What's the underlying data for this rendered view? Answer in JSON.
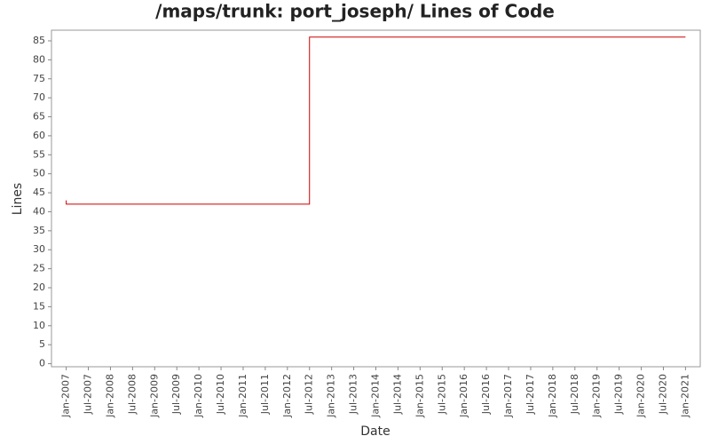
{
  "chart_data": {
    "type": "line",
    "title": "/maps/trunk: port_joseph/ Lines of Code",
    "x_label": "Date",
    "y_label": "Lines",
    "x": [
      "2007-01",
      "2007-01",
      "2012-07",
      "2012-07",
      "2021-01"
    ],
    "series": [
      {
        "name": "Lines",
        "color": "#cc0000",
        "values": [
          43,
          42,
          42,
          86,
          86
        ]
      }
    ],
    "xlim": [
      "2006-09",
      "2021-05"
    ],
    "xticks": [
      {
        "value": "2007-01",
        "label": "Jan-2007"
      },
      {
        "value": "2007-07",
        "label": "Jul-2007"
      },
      {
        "value": "2008-01",
        "label": "Jan-2008"
      },
      {
        "value": "2008-07",
        "label": "Jul-2008"
      },
      {
        "value": "2009-01",
        "label": "Jan-2009"
      },
      {
        "value": "2009-07",
        "label": "Jul-2009"
      },
      {
        "value": "2010-01",
        "label": "Jan-2010"
      },
      {
        "value": "2010-07",
        "label": "Jul-2010"
      },
      {
        "value": "2011-01",
        "label": "Jan-2011"
      },
      {
        "value": "2011-07",
        "label": "Jul-2011"
      },
      {
        "value": "2012-01",
        "label": "Jan-2012"
      },
      {
        "value": "2012-07",
        "label": "Jul-2012"
      },
      {
        "value": "2013-01",
        "label": "Jan-2013"
      },
      {
        "value": "2013-07",
        "label": "Jul-2013"
      },
      {
        "value": "2014-01",
        "label": "Jan-2014"
      },
      {
        "value": "2014-07",
        "label": "Jul-2014"
      },
      {
        "value": "2015-01",
        "label": "Jan-2015"
      },
      {
        "value": "2015-07",
        "label": "Jul-2015"
      },
      {
        "value": "2016-01",
        "label": "Jan-2016"
      },
      {
        "value": "2016-07",
        "label": "Jul-2016"
      },
      {
        "value": "2017-01",
        "label": "Jan-2017"
      },
      {
        "value": "2017-07",
        "label": "Jul-2017"
      },
      {
        "value": "2018-01",
        "label": "Jan-2018"
      },
      {
        "value": "2018-07",
        "label": "Jul-2018"
      },
      {
        "value": "2019-01",
        "label": "Jan-2019"
      },
      {
        "value": "2019-07",
        "label": "Jul-2019"
      },
      {
        "value": "2020-01",
        "label": "Jan-2020"
      },
      {
        "value": "2020-07",
        "label": "Jul-2020"
      },
      {
        "value": "2021-01",
        "label": "Jan-2021"
      }
    ],
    "ylim": [
      -0.8,
      87.8
    ],
    "yticks": [
      0,
      5,
      10,
      15,
      20,
      25,
      30,
      35,
      40,
      45,
      50,
      55,
      60,
      65,
      70,
      75,
      80,
      85
    ],
    "grid": false
  }
}
